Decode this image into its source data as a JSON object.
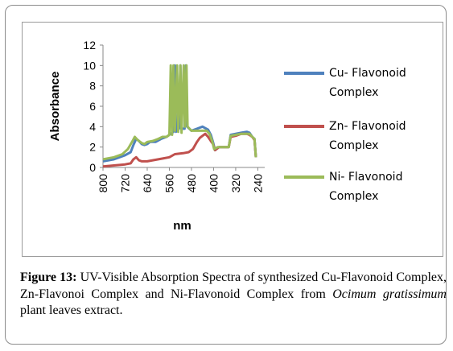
{
  "chart_data": {
    "type": "line",
    "xlabel": "nm",
    "ylabel": "Absorbance",
    "xlim": [
      800,
      215
    ],
    "x_reversed": true,
    "xticks": [
      "800",
      "720",
      "640",
      "560",
      "480",
      "400",
      "320",
      "240"
    ],
    "ylim": [
      0,
      12
    ],
    "yticks": [
      "0",
      "2",
      "4",
      "6",
      "8",
      "10",
      "12"
    ],
    "grid": false,
    "legend_position": "right",
    "series": [
      {
        "name": "Cu- Flavonoid Complex",
        "color": "#4f81bd",
        "points": [
          [
            800,
            0.6
          ],
          [
            760,
            0.8
          ],
          [
            740,
            1.0
          ],
          [
            720,
            1.2
          ],
          [
            700,
            1.5
          ],
          [
            690,
            2.2
          ],
          [
            680,
            2.8
          ],
          [
            670,
            2.6
          ],
          [
            660,
            2.3
          ],
          [
            650,
            2.2
          ],
          [
            640,
            2.3
          ],
          [
            630,
            2.5
          ],
          [
            610,
            2.5
          ],
          [
            590,
            2.8
          ],
          [
            570,
            3.0
          ],
          [
            545,
            3.5
          ],
          [
            540,
            10
          ],
          [
            536,
            3.5
          ],
          [
            525,
            3.8
          ],
          [
            520,
            10
          ],
          [
            516,
            3.8
          ],
          [
            505,
            3.8
          ],
          [
            500,
            10
          ],
          [
            496,
            4.0
          ],
          [
            480,
            3.6
          ],
          [
            460,
            3.8
          ],
          [
            440,
            4.0
          ],
          [
            420,
            3.7
          ],
          [
            410,
            3.2
          ],
          [
            402,
            2.5
          ],
          [
            395,
            1.7
          ],
          [
            380,
            2.0
          ],
          [
            360,
            2.0
          ],
          [
            345,
            2.0
          ],
          [
            338,
            3.2
          ],
          [
            320,
            3.3
          ],
          [
            300,
            3.4
          ],
          [
            280,
            3.5
          ],
          [
            270,
            3.4
          ],
          [
            260,
            3.0
          ],
          [
            252,
            2.8
          ],
          [
            247,
            1.0
          ]
        ]
      },
      {
        "name": "Zn- Flavonoid Complex",
        "color": "#c0504d",
        "points": [
          [
            800,
            0.1
          ],
          [
            760,
            0.2
          ],
          [
            720,
            0.3
          ],
          [
            700,
            0.4
          ],
          [
            690,
            0.8
          ],
          [
            680,
            1.0
          ],
          [
            670,
            0.7
          ],
          [
            660,
            0.6
          ],
          [
            640,
            0.6
          ],
          [
            620,
            0.7
          ],
          [
            600,
            0.8
          ],
          [
            580,
            0.9
          ],
          [
            560,
            1.0
          ],
          [
            540,
            1.3
          ],
          [
            510,
            1.4
          ],
          [
            490,
            1.5
          ],
          [
            475,
            1.8
          ],
          [
            460,
            2.5
          ],
          [
            450,
            2.9
          ],
          [
            440,
            3.1
          ],
          [
            430,
            3.3
          ],
          [
            420,
            3.0
          ],
          [
            410,
            2.6
          ],
          [
            402,
            2.3
          ],
          [
            395,
            1.7
          ],
          [
            380,
            2.0
          ],
          [
            360,
            2.0
          ],
          [
            345,
            2.0
          ],
          [
            338,
            3.0
          ],
          [
            320,
            3.1
          ],
          [
            300,
            3.3
          ],
          [
            280,
            3.3
          ],
          [
            270,
            3.2
          ],
          [
            260,
            3.0
          ],
          [
            252,
            2.7
          ],
          [
            247,
            1.0
          ]
        ]
      },
      {
        "name": "Ni- Flavonoid Complex",
        "color": "#9bbb59",
        "points": [
          [
            800,
            0.8
          ],
          [
            760,
            1.0
          ],
          [
            730,
            1.3
          ],
          [
            710,
            1.8
          ],
          [
            695,
            2.5
          ],
          [
            685,
            3.0
          ],
          [
            675,
            2.7
          ],
          [
            660,
            2.4
          ],
          [
            650,
            2.3
          ],
          [
            640,
            2.5
          ],
          [
            620,
            2.6
          ],
          [
            600,
            2.8
          ],
          [
            585,
            3.0
          ],
          [
            570,
            3.0
          ],
          [
            560,
            3.2
          ],
          [
            555,
            10
          ],
          [
            550,
            3.2
          ],
          [
            545,
            10
          ],
          [
            540,
            3.6
          ],
          [
            532,
            10
          ],
          [
            528,
            3.5
          ],
          [
            520,
            10
          ],
          [
            516,
            3.4
          ],
          [
            508,
            10
          ],
          [
            504,
            4.0
          ],
          [
            498,
            10
          ],
          [
            494,
            4.0
          ],
          [
            480,
            3.6
          ],
          [
            460,
            3.6
          ],
          [
            440,
            3.6
          ],
          [
            425,
            3.6
          ],
          [
            415,
            3.3
          ],
          [
            405,
            2.6
          ],
          [
            398,
            1.8
          ],
          [
            385,
            2.0
          ],
          [
            360,
            2.0
          ],
          [
            345,
            2.0
          ],
          [
            338,
            3.1
          ],
          [
            320,
            3.2
          ],
          [
            300,
            3.3
          ],
          [
            280,
            3.3
          ],
          [
            270,
            3.3
          ],
          [
            260,
            3.0
          ],
          [
            252,
            2.8
          ],
          [
            247,
            1.0
          ]
        ]
      }
    ]
  },
  "legend": {
    "items": [
      {
        "line1": "Cu- Flavonoid",
        "line2": "Complex",
        "color": "#4f81bd"
      },
      {
        "line1": "Zn- Flavonoid",
        "line2": "Complex",
        "color": "#c0504d"
      },
      {
        "line1": "Ni- Flavonoid",
        "line2": "Complex",
        "color": "#9bbb59"
      }
    ]
  },
  "caption": {
    "label": "Figure 13:",
    "text_before": " UV-Visible Absorption Spectra of synthesized Cu-Flavonoid Complex, Zn-Flavonoi Complex and Ni-Flavonoid Complex from ",
    "species": "Ocimum gratissimum",
    "text_after": " plant leaves extract."
  }
}
